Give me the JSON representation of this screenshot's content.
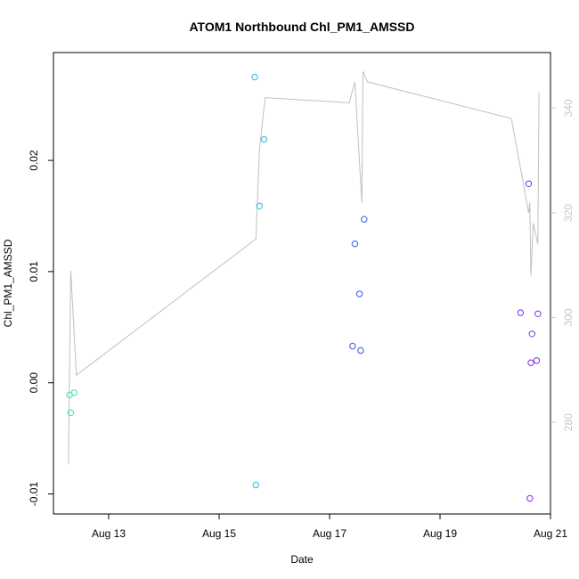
{
  "chart_data": {
    "type": "scatter",
    "title": "ATOM1 Northbound Chl_PM1_AMSSD",
    "xlabel": "Date",
    "ylabel": "Chl_PM1_AMSSD",
    "xlim": [
      "2021-08-12T00:00",
      "2021-08-21T00:00"
    ],
    "ylim": [
      -0.0118,
      0.0297
    ],
    "x_ticks": [
      {
        "label": "Aug 13",
        "value": "2021-08-13T00:00"
      },
      {
        "label": "Aug 15",
        "value": "2021-08-15T00:00"
      },
      {
        "label": "Aug 17",
        "value": "2021-08-17T00:00"
      },
      {
        "label": "Aug 19",
        "value": "2021-08-19T00:00"
      },
      {
        "label": "Aug 21",
        "value": "2021-08-21T00:00"
      }
    ],
    "y_ticks": [
      {
        "label": "-0.01",
        "value": -0.01
      },
      {
        "label": "0.00",
        "value": 0.0
      },
      {
        "label": "0.01",
        "value": 0.01
      },
      {
        "label": "0.02",
        "value": 0.02
      }
    ],
    "y2_ticks": [
      {
        "label": "280",
        "value": 280
      },
      {
        "label": "300",
        "value": 300
      },
      {
        "label": "320",
        "value": 320
      },
      {
        "label": "340",
        "value": 340
      }
    ],
    "y2lim": [
      262.5,
      350.6
    ],
    "points": [
      {
        "x": "2021-08-12T07:00",
        "y": -0.0011,
        "color": "#3ee6a5"
      },
      {
        "x": "2021-08-12T07:30",
        "y": -0.0027,
        "color": "#3ee6a5"
      },
      {
        "x": "2021-08-12T09:00",
        "y": -0.0009,
        "color": "#3ee6a5"
      },
      {
        "x": "2021-08-15T15:30",
        "y": 0.0275,
        "color": "#1fbfe6"
      },
      {
        "x": "2021-08-15T16:00",
        "y": -0.0092,
        "color": "#1fbfe6"
      },
      {
        "x": "2021-08-15T17:30",
        "y": 0.0159,
        "color": "#1fbfe6"
      },
      {
        "x": "2021-08-15T19:30",
        "y": 0.0219,
        "color": "#1fbfe6"
      },
      {
        "x": "2021-08-17T10:00",
        "y": 0.0033,
        "color": "#3a55e8"
      },
      {
        "x": "2021-08-17T11:00",
        "y": 0.0125,
        "color": "#3a55e8"
      },
      {
        "x": "2021-08-17T13:00",
        "y": 0.008,
        "color": "#3a55e8"
      },
      {
        "x": "2021-08-17T13:30",
        "y": 0.0029,
        "color": "#3a55e8"
      },
      {
        "x": "2021-08-17T15:00",
        "y": 0.0147,
        "color": "#3a55e8"
      },
      {
        "x": "2021-08-20T11:00",
        "y": 0.0063,
        "color": "#7b2fe6"
      },
      {
        "x": "2021-08-20T14:30",
        "y": 0.0179,
        "color": "#7b2fe6"
      },
      {
        "x": "2021-08-20T15:00",
        "y": -0.0104,
        "color": "#7b2fe6"
      },
      {
        "x": "2021-08-20T15:30",
        "y": 0.0018,
        "color": "#7b2fe6"
      },
      {
        "x": "2021-08-20T16:00",
        "y": 0.0044,
        "color": "#7b2fe6"
      },
      {
        "x": "2021-08-20T18:00",
        "y": 0.002,
        "color": "#7b2fe6"
      },
      {
        "x": "2021-08-20T18:30",
        "y": 0.0062,
        "color": "#7b2fe6"
      }
    ],
    "secondary_line": {
      "color": "#c0c0c0",
      "points": [
        {
          "x": "2021-08-12T06:30",
          "y2": 272
        },
        {
          "x": "2021-08-12T07:30",
          "y2": 309
        },
        {
          "x": "2021-08-12T10:00",
          "y2": 289
        },
        {
          "x": "2021-08-15T16:00",
          "y2": 315
        },
        {
          "x": "2021-08-15T17:30",
          "y2": 332
        },
        {
          "x": "2021-08-15T20:00",
          "y2": 342
        },
        {
          "x": "2021-08-17T08:30",
          "y2": 341
        },
        {
          "x": "2021-08-17T11:00",
          "y2": 345
        },
        {
          "x": "2021-08-17T14:00",
          "y2": 322
        },
        {
          "x": "2021-08-17T14:30",
          "y2": 347
        },
        {
          "x": "2021-08-17T16:30",
          "y2": 345
        },
        {
          "x": "2021-08-20T07:00",
          "y2": 338
        },
        {
          "x": "2021-08-20T14:30",
          "y2": 320
        },
        {
          "x": "2021-08-20T15:00",
          "y2": 322
        },
        {
          "x": "2021-08-20T15:30",
          "y2": 308
        },
        {
          "x": "2021-08-20T16:30",
          "y2": 318
        },
        {
          "x": "2021-08-20T18:30",
          "y2": 314
        },
        {
          "x": "2021-08-20T19:00",
          "y2": 343
        }
      ]
    },
    "grid": false,
    "legend": "none"
  }
}
